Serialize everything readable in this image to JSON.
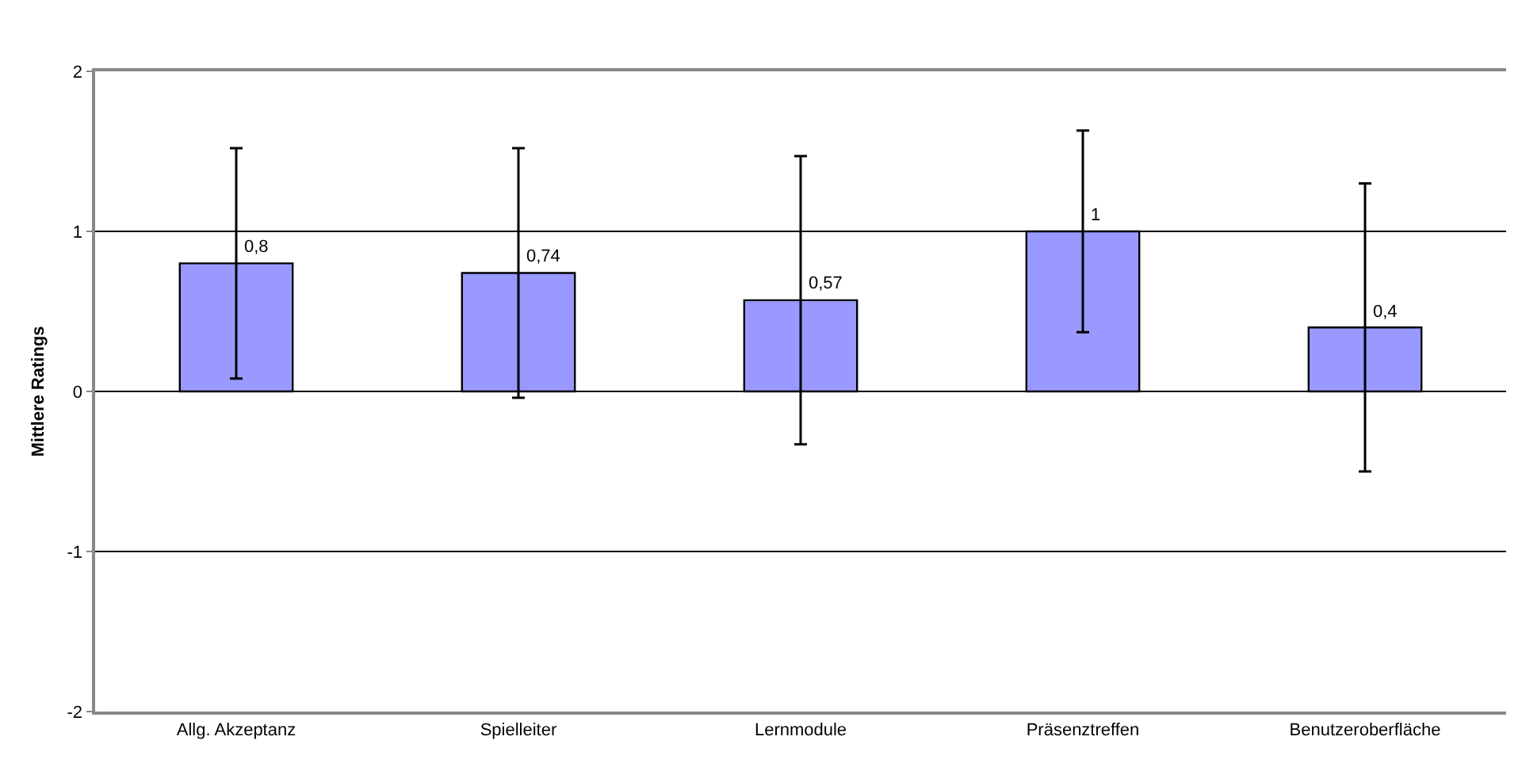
{
  "chart_data": {
    "type": "bar",
    "ylabel": "Mittlere Ratings",
    "categories": [
      "Allg. Akzeptanz",
      "Spielleiter",
      "Lernmodule",
      "Präsenztreffen",
      "Benutzeroberfläche"
    ],
    "values": [
      0.8,
      0.74,
      0.57,
      1,
      0.4
    ],
    "value_labels": [
      "0,8",
      "0,74",
      "0,57",
      "1",
      "0,4"
    ],
    "errors": [
      0.72,
      0.78,
      0.9,
      0.63,
      0.9
    ],
    "color": "#9999ff",
    "ylim": [
      -2,
      2
    ],
    "yticks": [
      -2,
      -1,
      0,
      1,
      2
    ],
    "grid": "y"
  }
}
